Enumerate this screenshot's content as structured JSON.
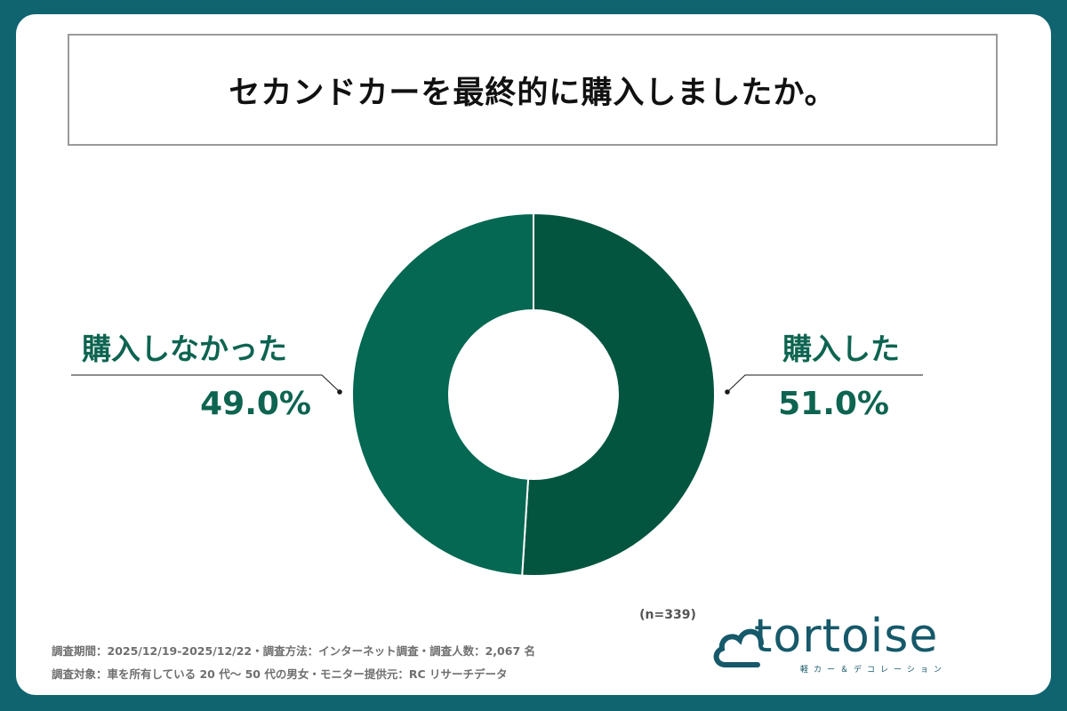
{
  "title": "セカンドカーを最終的に購入しましたか。",
  "chart_data": {
    "type": "pie",
    "variant": "donut",
    "slices": [
      {
        "label": "購入した",
        "value": 51.0,
        "value_label": "51.0%",
        "color": "#045540"
      },
      {
        "label": "購入しなかった",
        "value": 49.0,
        "value_label": "49.0%",
        "color": "#046852"
      }
    ],
    "sample_note": "(n=339)"
  },
  "colors": {
    "background": "#0f6470",
    "label_text": "#0d6450",
    "accent": "#16596a"
  },
  "footer": {
    "line1": "調査期間：2025/12/19-2025/12/22・調査方法：インターネット調査・調査人数：2,067 名",
    "line2": "調査対象：車を所有している 20 代〜 50 代の男女・モニター提供元：RC リサーチデータ"
  },
  "logo": {
    "wordmark": "tortoise",
    "subtitle": "軽カー＆デコレーション"
  }
}
